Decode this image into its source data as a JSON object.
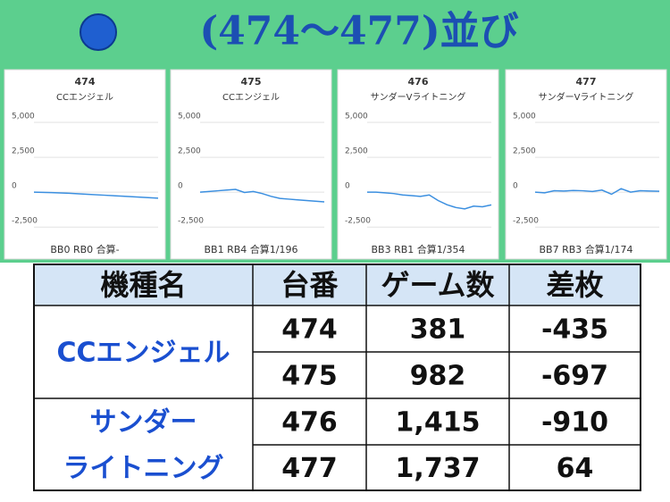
{
  "title": "(474～477)並び",
  "chart_data": [
    {
      "type": "line",
      "title": "474",
      "subtitle": "CCエンジェル",
      "footer": "BB0 RB0 合算-",
      "color": "#3b8fe0",
      "values": [
        0,
        -30,
        -80,
        -150,
        -220,
        -290,
        -360,
        -435
      ],
      "ylim": [
        -3000,
        5000
      ],
      "yticks": [
        {
          "value": 5000,
          "label": "5,000"
        },
        {
          "value": 2500,
          "label": "2,500"
        },
        0,
        {
          "value": -2500,
          "label": "-2,500"
        }
      ],
      "grid": true
    },
    {
      "type": "line",
      "title": "475",
      "subtitle": "CCエンジェル",
      "footer": "BB1 RB4 合算1/196",
      "color": "#3b8fe0",
      "values": [
        0,
        50,
        100,
        150,
        200,
        -20,
        50,
        -100,
        -300,
        -450,
        -500,
        -550,
        -600,
        -650,
        -697
      ],
      "ylim": [
        -3000,
        5000
      ],
      "yticks": [
        {
          "value": 5000,
          "label": "5,000"
        },
        {
          "value": 2500,
          "label": "2,500"
        },
        0,
        {
          "value": -2500,
          "label": "-2,500"
        }
      ],
      "grid": true
    },
    {
      "type": "line",
      "title": "476",
      "subtitle": "サンダーVライトニング",
      "footer": "BB3 RB1 合算1/354",
      "color": "#3b8fe0",
      "values": [
        0,
        0,
        -50,
        -100,
        -200,
        -250,
        -300,
        -200,
        -600,
        -900,
        -1100,
        -1200,
        -1000,
        -1050,
        -910
      ],
      "ylim": [
        -3000,
        5000
      ],
      "yticks": [
        {
          "value": 5000,
          "label": "5,000"
        },
        {
          "value": 2500,
          "label": "2,500"
        },
        0,
        {
          "value": -2500,
          "label": "-2,500"
        }
      ],
      "grid": true
    },
    {
      "type": "line",
      "title": "477",
      "subtitle": "サンダーVライトニング",
      "footer": "BB7 RB3 合算1/174",
      "color": "#3b8fe0",
      "values": [
        0,
        -50,
        100,
        80,
        120,
        100,
        50,
        150,
        -150,
        250,
        0,
        100,
        80,
        64
      ],
      "ylim": [
        -3000,
        5000
      ],
      "yticks": [
        {
          "value": 5000,
          "label": "5,000"
        },
        {
          "value": 2500,
          "label": "2,500"
        },
        0,
        {
          "value": -2500,
          "label": "-2,500"
        }
      ],
      "grid": true
    }
  ],
  "table": {
    "header": [
      "機種名",
      "台番",
      "ゲーム数",
      "差枚"
    ],
    "groups": [
      {
        "machine": [
          "CCエンジェル"
        ],
        "rows": [
          [
            "474",
            "381",
            "-435"
          ],
          [
            "475",
            "982",
            "-697"
          ]
        ]
      },
      {
        "machine": [
          "サンダー",
          "ライトニング"
        ],
        "rows": [
          [
            "476",
            "1,415",
            "-910"
          ],
          [
            "477",
            "1,737",
            "64"
          ]
        ]
      }
    ]
  }
}
